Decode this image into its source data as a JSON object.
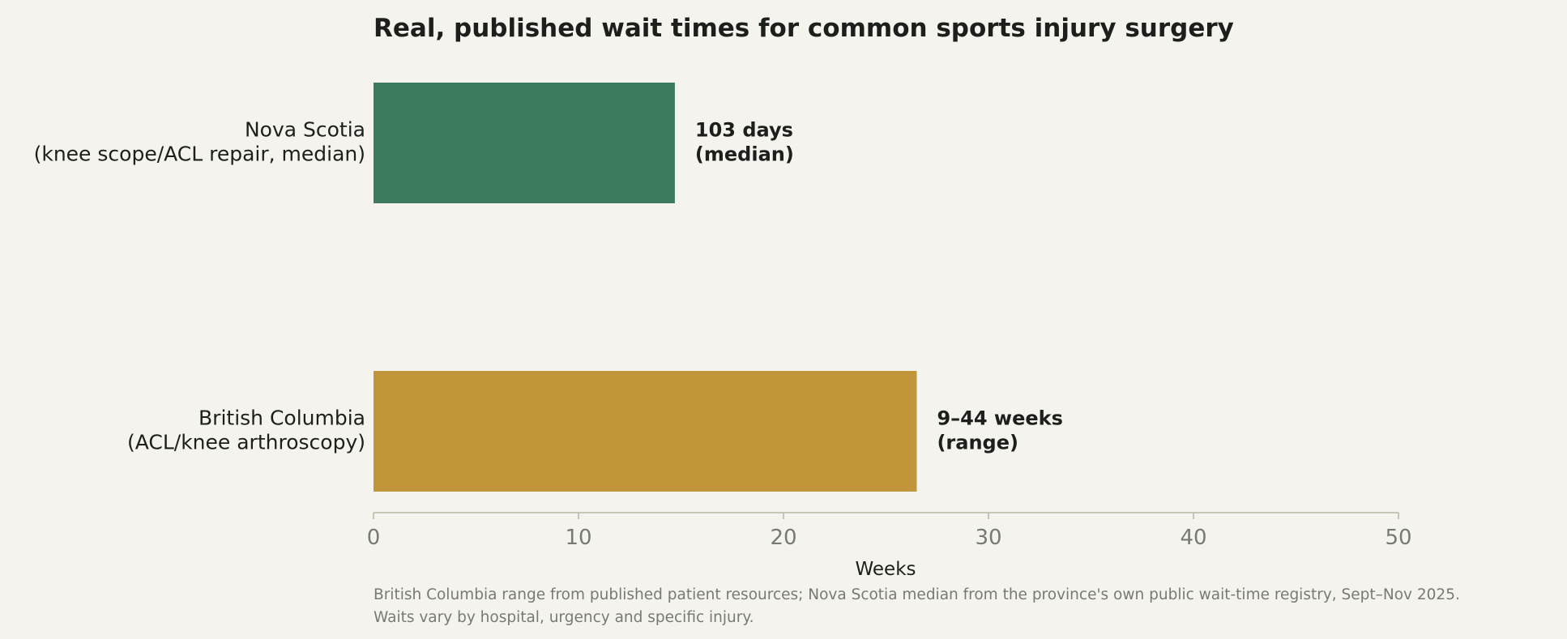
{
  "chart_data": {
    "type": "bar",
    "orientation": "horizontal",
    "title": "Real, published wait times for common sports injury surgery",
    "xlabel": "Weeks",
    "ylabel": "",
    "xlim": [
      0,
      50
    ],
    "xticks": [
      "0",
      "10",
      "20",
      "30",
      "40",
      "50"
    ],
    "grid": false,
    "categories": [
      [
        "Nova Scotia",
        "(knee scope/ACL repair, median)"
      ],
      [
        "British Columbia",
        "(ACL/knee arthroscopy)"
      ]
    ],
    "values": [
      14.7,
      26.5
    ],
    "colors": [
      "#3d7b5f",
      "#c1953a"
    ],
    "data_labels": [
      [
        "103 days",
        "(median)"
      ],
      [
        "9–44 weeks",
        "(range)"
      ]
    ],
    "footnote": [
      "British Columbia range from published patient resources; Nova Scotia median from the province's own public wait-time registry, Sept–Nov 2025.",
      "Waits vary by hospital, urgency and specific injury."
    ],
    "axis_color": "#b9b4a4"
  }
}
